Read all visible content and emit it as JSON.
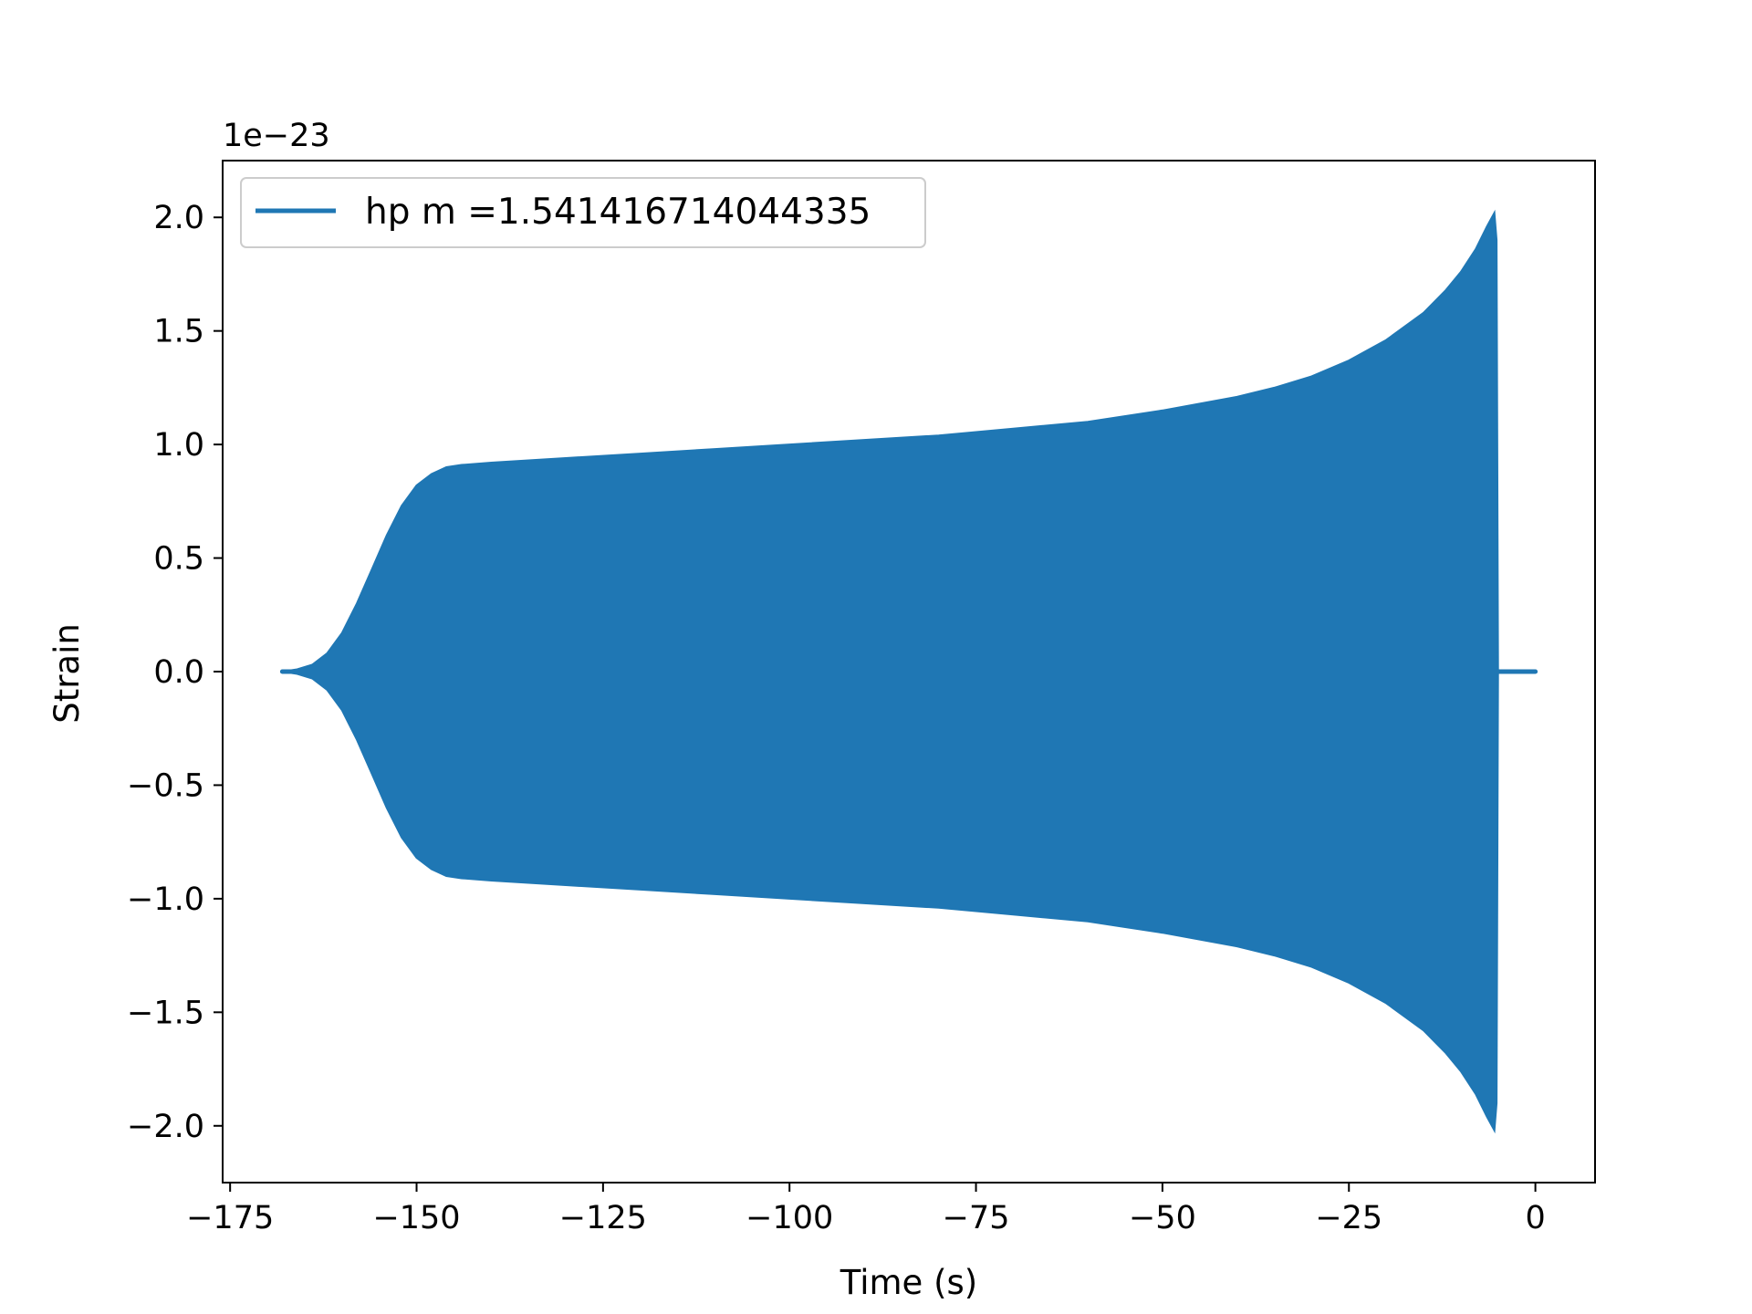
{
  "chart_data": {
    "type": "line",
    "xlabel": "Time (s)",
    "ylabel": "Strain",
    "y_offset_label": "1e−23",
    "xlim": [
      -176,
      8
    ],
    "ylim": [
      -2.25,
      2.25
    ],
    "x_ticks": [
      -175,
      -150,
      -125,
      -100,
      -75,
      -50,
      -25,
      0
    ],
    "x_tick_labels": [
      "−175",
      "−150",
      "−125",
      "−100",
      "−75",
      "−50",
      "−25",
      "0"
    ],
    "y_ticks": [
      2.0,
      1.5,
      1.0,
      0.5,
      0.0,
      -0.5,
      -1.0,
      -1.5,
      -2.0
    ],
    "y_tick_labels": [
      "2.0",
      "1.5",
      "1.0",
      "0.5",
      "0.0",
      "−0.5",
      "−1.0",
      "−1.5",
      "−2.0"
    ],
    "grid": false,
    "legend_position": "top-left",
    "series": [
      {
        "name": "hp m =1.541416714044335",
        "color": "#1f77b4",
        "envelope": {
          "t": [
            -168,
            -166,
            -164,
            -162,
            -160,
            -158,
            -156,
            -154,
            -152,
            -150,
            -148,
            -146,
            -144,
            -140,
            -130,
            -120,
            -110,
            -100,
            -90,
            -80,
            -70,
            -60,
            -50,
            -40,
            -35,
            -30,
            -25,
            -20,
            -15,
            -12,
            -10,
            -8,
            -6.5,
            -5.5,
            -5.2,
            -5.0
          ],
          "amplitude": [
            0.0,
            0.01,
            0.03,
            0.08,
            0.17,
            0.3,
            0.45,
            0.6,
            0.73,
            0.82,
            0.87,
            0.9,
            0.91,
            0.92,
            0.94,
            0.96,
            0.98,
            1.0,
            1.02,
            1.04,
            1.07,
            1.1,
            1.15,
            1.21,
            1.25,
            1.3,
            1.37,
            1.46,
            1.58,
            1.68,
            1.76,
            1.86,
            1.96,
            2.02,
            1.9,
            0.0
          ]
        },
        "flat_segments": [
          [
            -168,
            -166
          ],
          [
            -5,
            0
          ]
        ]
      }
    ]
  }
}
